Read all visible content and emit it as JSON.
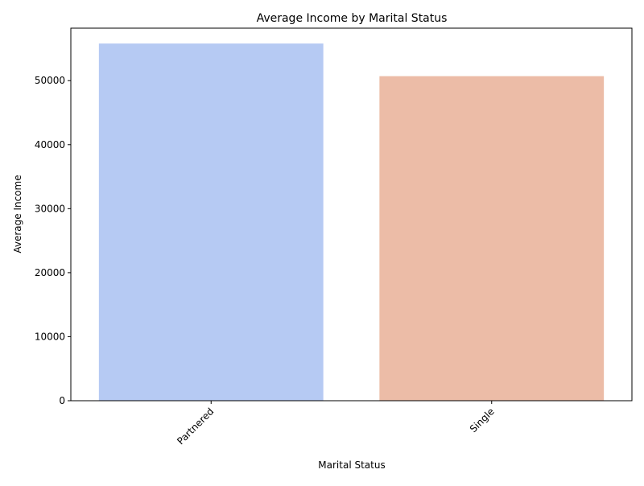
{
  "chart_data": {
    "type": "bar",
    "title": "Average Income by Marital Status",
    "xlabel": "Marital Status",
    "ylabel": "Average Income",
    "categories": [
      "Partnered",
      "Single"
    ],
    "values": [
      55800,
      50700
    ],
    "colors": [
      "#b6caf3",
      "#ecbca7"
    ],
    "ylim": [
      0,
      58200
    ],
    "yticks": [
      0,
      10000,
      20000,
      30000,
      40000,
      50000
    ],
    "ytick_labels": [
      "0",
      "10000",
      "20000",
      "30000",
      "40000",
      "50000"
    ],
    "grid": false,
    "legend": false
  }
}
